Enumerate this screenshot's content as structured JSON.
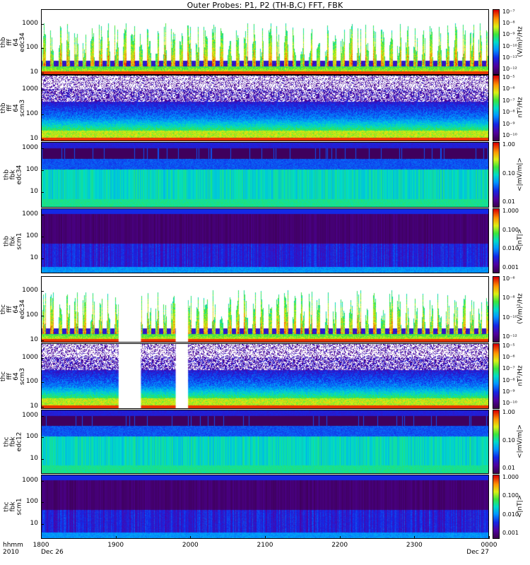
{
  "title": "Outer Probes: P1, P2 (TH-B,C) FFT, FBK",
  "x_axis": {
    "row_label_1": "hhmm",
    "row_label_2": "2010",
    "ticks": [
      "1800",
      "1900",
      "2000",
      "2100",
      "2200",
      "2300",
      "0000"
    ],
    "start_date": "Dec 26",
    "end_date": "Dec 27"
  },
  "chart_data": [
    {
      "type": "heatmap",
      "id": "thb_fff_64_edc34",
      "ylabel": [
        "thb",
        "fff",
        "64",
        "edc34"
      ],
      "yscale": "log",
      "ylim": [
        8,
        4000
      ],
      "yticks": [
        "1000",
        "100",
        "10"
      ],
      "colorbar": {
        "title": "(V/m)²/Hz",
        "ticks": [
          "10⁻⁷",
          "10⁻⁸",
          "10⁻⁹",
          "10⁻¹⁰",
          "10⁻¹¹",
          "10⁻¹²"
        ]
      },
      "gaps": []
    },
    {
      "type": "heatmap",
      "id": "thb_fff_64_scm3",
      "ylabel": [
        "thb",
        "fff",
        "64",
        "scm3"
      ],
      "yscale": "log",
      "ylim": [
        8,
        4000
      ],
      "yticks": [
        "1000",
        "100",
        "10"
      ],
      "colorbar": {
        "title": "nT²/Hz",
        "ticks": [
          "10⁻⁵",
          "10⁻⁶",
          "10⁻⁷",
          "10⁻⁸",
          "10⁻⁹",
          "10⁻¹⁰"
        ]
      },
      "gaps": []
    },
    {
      "type": "heatmap",
      "id": "thb_fbk_edc34",
      "ylabel": [
        "thb",
        "fbk",
        "edc34"
      ],
      "yscale": "log",
      "ylim": [
        2,
        2000
      ],
      "yticks": [
        "1000",
        "100",
        "10"
      ],
      "colorbar": {
        "title": "<|mV/m|>",
        "ticks": [
          "1.00",
          "0.10",
          "0.01"
        ]
      },
      "gaps": []
    },
    {
      "type": "heatmap",
      "id": "thb_fbk_scm1",
      "ylabel": [
        "thb",
        "fbk",
        "scm1"
      ],
      "yscale": "log",
      "ylim": [
        2,
        2000
      ],
      "yticks": [
        "1000",
        "100",
        "10"
      ],
      "colorbar": {
        "title": "<|nT|>",
        "ticks": [
          "1.000",
          "0.100",
          "0.010",
          "0.001"
        ]
      },
      "gaps": []
    },
    {
      "type": "heatmap",
      "id": "thc_fff_64_edc34",
      "ylabel": [
        "thc",
        "fff",
        "64",
        "edc34"
      ],
      "yscale": "log",
      "ylim": [
        8,
        4000
      ],
      "yticks": [
        "1000",
        "100",
        "10"
      ],
      "colorbar": {
        "title": "(V/m)²/Hz",
        "ticks": [
          "10⁻⁶",
          "10⁻⁸",
          "10⁻¹⁰",
          "10⁻¹²"
        ]
      },
      "gaps": [
        [
          "1902",
          "1920"
        ],
        [
          "1948",
          "1958"
        ]
      ]
    },
    {
      "type": "heatmap",
      "id": "thc_fff_64_scm3",
      "ylabel": [
        "thc",
        "fff",
        "64",
        "scm3"
      ],
      "yscale": "log",
      "ylim": [
        8,
        4000
      ],
      "yticks": [
        "1000",
        "100",
        "10"
      ],
      "colorbar": {
        "title": "nT²/Hz",
        "ticks": [
          "10⁻⁵",
          "10⁻⁶",
          "10⁻⁷",
          "10⁻⁸",
          "10⁻⁹",
          "10⁻¹⁰"
        ]
      },
      "gaps": [
        [
          "1902",
          "1920"
        ],
        [
          "1948",
          "1958"
        ]
      ]
    },
    {
      "type": "heatmap",
      "id": "thc_fbk_edc12",
      "ylabel": [
        "thc",
        "fbk",
        "edc12"
      ],
      "yscale": "log",
      "ylim": [
        2,
        2000
      ],
      "yticks": [
        "1000",
        "100",
        "10"
      ],
      "colorbar": {
        "title": "<|mV/m|>",
        "ticks": [
          "1.00",
          "0.10",
          "0.01"
        ]
      },
      "gaps": []
    },
    {
      "type": "heatmap",
      "id": "thc_fbk_scm1",
      "ylabel": [
        "thc",
        "fbk",
        "scm1"
      ],
      "yscale": "log",
      "ylim": [
        2,
        2000
      ],
      "yticks": [
        "1000",
        "100",
        "10"
      ],
      "colorbar": {
        "title": "<|nT|>",
        "ticks": [
          "1.000",
          "0.100",
          "0.010",
          "0.001"
        ]
      },
      "gaps": []
    }
  ]
}
